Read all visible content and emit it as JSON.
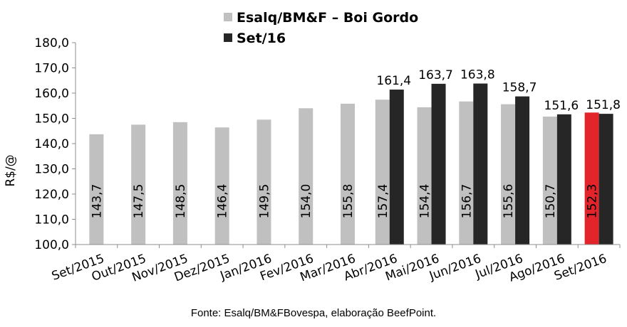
{
  "chart_data": {
    "type": "bar",
    "categories": [
      "Set/2015",
      "Out/2015",
      "Nov/2015",
      "Dez/2015",
      "Jan/2016",
      "Fev/2016",
      "Mar/2016",
      "Abr/2016",
      "Mai/2016",
      "Jun/2016",
      "Jul/2016",
      "Ago/2016",
      "Set/2016"
    ],
    "series": [
      {
        "name": "Esalq/BM&F – Boi Gordo",
        "color": "#c0c0c0",
        "values": [
          143.7,
          147.5,
          148.5,
          146.4,
          149.5,
          154.0,
          155.8,
          157.4,
          154.4,
          156.7,
          155.6,
          150.7,
          152.3
        ],
        "labels": [
          "143,7",
          "147,5",
          "148,5",
          "146,4",
          "149,5",
          "154,0",
          "155,8",
          "157,4",
          "154,4",
          "156,7",
          "155,6",
          "150,7",
          "152,3"
        ],
        "highlight": {
          "index": 12,
          "color": "#e3242b"
        }
      },
      {
        "name": "Set/16",
        "color": "#262626",
        "values": [
          null,
          null,
          null,
          null,
          null,
          null,
          null,
          161.4,
          163.7,
          163.8,
          158.7,
          151.6,
          151.8
        ],
        "labels": [
          null,
          null,
          null,
          null,
          null,
          null,
          null,
          "161,4",
          "163,7",
          "163,8",
          "158,7",
          "151,6",
          "151,8"
        ]
      }
    ],
    "ylabel": "R$/@",
    "ylim": [
      100,
      180
    ],
    "yticks": [
      "100,0",
      "110,0",
      "120,0",
      "130,0",
      "140,0",
      "150,0",
      "160,0",
      "170,0",
      "180,0"
    ],
    "grid": false,
    "legend": "top-center",
    "source": "Fonte: Esalq/BM&FBovespa, elaboração BeefPoint."
  }
}
